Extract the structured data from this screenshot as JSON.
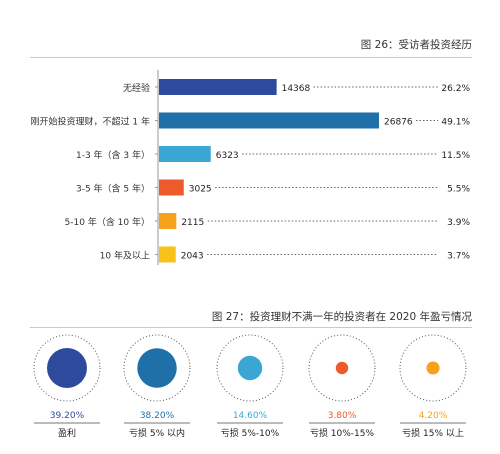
{
  "fig26": {
    "title": "图 26：受访者投资经历",
    "chart_data": {
      "type": "bar",
      "orientation": "horizontal",
      "categories": [
        "无经验",
        "刚开始投资理财，不超过 1 年",
        "1-3 年（含 3 年）",
        "3-5 年（含 5 年）",
        "5-10 年（含 10 年）",
        "10 年及以上"
      ],
      "values": [
        14368,
        26876,
        6323,
        3025,
        2115,
        2043
      ],
      "percent_labels": [
        "26.2%",
        "49.1%",
        "11.5%",
        "5.5%",
        "3.9%",
        "3.7%"
      ],
      "colors": [
        "#2e4a9c",
        "#1f6fa8",
        "#3aa6d3",
        "#ef5a2b",
        "#f7a11a",
        "#f7c21a"
      ],
      "xlim": [
        0,
        27500
      ],
      "grid": false
    }
  },
  "fig27": {
    "title": "图 27：投资理财不满一年的投资者在 2020 年盈亏情况",
    "chart_data": {
      "type": "bubble",
      "categories": [
        "盈利",
        "亏损 5% 以内",
        "亏损 5%-10%",
        "亏损 10%-15%",
        "亏损 15% 以上"
      ],
      "value_labels": [
        "39.20%",
        "38.20%",
        "14.60%",
        "3.80%",
        "4.20%"
      ],
      "values": [
        39.2,
        38.2,
        14.6,
        3.8,
        4.2
      ],
      "colors": [
        "#2e4a9c",
        "#1f6fa8",
        "#3aa6d3",
        "#ef5a2b",
        "#f7a11a"
      ]
    }
  }
}
